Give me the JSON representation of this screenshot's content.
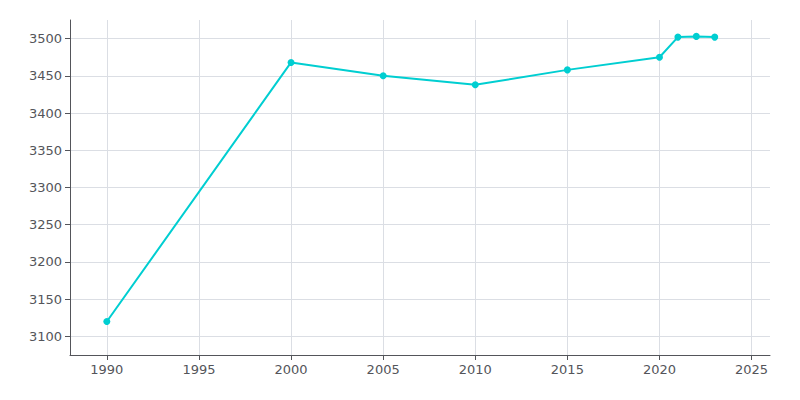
{
  "chart_data": {
    "type": "line",
    "x": [
      1990,
      2000,
      2005,
      2010,
      2015,
      2020,
      2021,
      2022,
      2023
    ],
    "values": [
      3120,
      3468,
      3450,
      3438,
      3458,
      3475,
      3502,
      3503,
      3502
    ],
    "color": "#00CED1",
    "marker": "circle",
    "xlim": [
      1988,
      2026
    ],
    "ylim": [
      3075,
      3525
    ],
    "xticks": [
      1990,
      1995,
      2000,
      2005,
      2010,
      2015,
      2020,
      2025
    ],
    "yticks": [
      3100,
      3150,
      3200,
      3250,
      3300,
      3350,
      3400,
      3450,
      3500
    ],
    "grid": true
  }
}
